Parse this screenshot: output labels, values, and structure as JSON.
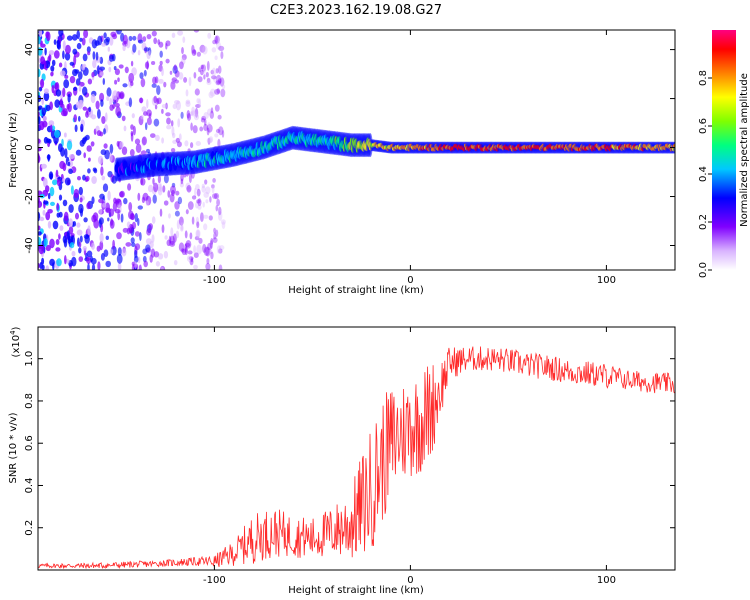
{
  "figure_title": "C2E3.2023.162.19.08.G27",
  "chart_data": [
    {
      "type": "heatmap",
      "title": "C2E3.2023.162.19.08.G27",
      "xlabel": "Height of straight line (km)",
      "ylabel": "Frequency (Hz)",
      "xlim": [
        -190,
        135
      ],
      "ylim": [
        -50,
        48
      ],
      "xticks": [
        -100,
        0,
        100
      ],
      "yticks": [
        -40,
        -20,
        0,
        20,
        40
      ],
      "colorbar": {
        "label": "Normalized spectral amplitude",
        "range": [
          0,
          1
        ],
        "ticks": [
          0.0,
          0.2,
          0.4,
          0.6,
          0.8
        ],
        "colors": [
          "#ffffff",
          "#d9b3ff",
          "#8000ff",
          "#0000ff",
          "#00c8ff",
          "#00ff80",
          "#80ff00",
          "#ffff00",
          "#ff8000",
          "#ff0000",
          "#ff0080"
        ]
      },
      "ridge": {
        "name": "dominant frequency trace",
        "x": [
          -150,
          -130,
          -110,
          -90,
          -75,
          -60,
          -50,
          -40,
          -30,
          -20,
          -10,
          0,
          10,
          20,
          40,
          60,
          80,
          100,
          120,
          135
        ],
        "y": [
          -9,
          -7,
          -6,
          -3,
          0,
          4,
          3,
          2,
          1,
          1,
          0,
          0,
          0,
          0,
          0,
          0,
          0,
          0,
          0,
          0
        ],
        "amplitude": [
          0.35,
          0.4,
          0.45,
          0.5,
          0.55,
          0.5,
          0.5,
          0.55,
          0.7,
          0.75,
          0.8,
          0.85,
          0.9,
          0.95,
          0.95,
          0.95,
          0.9,
          0.9,
          0.85,
          0.85
        ]
      },
      "noise_region": {
        "x": [
          -190,
          -95
        ],
        "y": [
          -50,
          48
        ],
        "amplitude": [
          0.1,
          0.4
        ]
      }
    },
    {
      "type": "line",
      "xlabel": "Height of straight line (km)",
      "ylabel": "SNR (10 * v/v)",
      "scale_label": "(x10",
      "scale_exponent": "4",
      "scale_close": ")",
      "xlim": [
        -190,
        135
      ],
      "ylim": [
        0,
        1.15
      ],
      "xticks": [
        -100,
        0,
        100
      ],
      "yticks": [
        0.2,
        0.4,
        0.6,
        0.8,
        1.0
      ],
      "series": [
        {
          "color": "#ff2a2a",
          "x": [
            -190,
            -160,
            -130,
            -110,
            -100,
            -90,
            -80,
            -70,
            -60,
            -50,
            -40,
            -30,
            -25,
            -20,
            -15,
            -10,
            -5,
            0,
            5,
            10,
            15,
            20,
            30,
            40,
            50,
            60,
            70,
            80,
            90,
            100,
            110,
            120,
            135
          ],
          "y": [
            0.02,
            0.02,
            0.03,
            0.04,
            0.04,
            0.08,
            0.15,
            0.18,
            0.16,
            0.15,
            0.18,
            0.22,
            0.3,
            0.38,
            0.5,
            0.6,
            0.65,
            0.68,
            0.7,
            0.75,
            0.85,
            0.98,
            1.0,
            1.0,
            0.99,
            0.97,
            0.96,
            0.94,
            0.93,
            0.92,
            0.9,
            0.89,
            0.88
          ],
          "spread": [
            0.01,
            0.015,
            0.015,
            0.02,
            0.03,
            0.06,
            0.12,
            0.12,
            0.1,
            0.1,
            0.12,
            0.18,
            0.25,
            0.3,
            0.3,
            0.28,
            0.25,
            0.25,
            0.25,
            0.25,
            0.15,
            0.08,
            0.06,
            0.06,
            0.06,
            0.06,
            0.06,
            0.06,
            0.06,
            0.06,
            0.05,
            0.05,
            0.05
          ]
        }
      ]
    }
  ]
}
